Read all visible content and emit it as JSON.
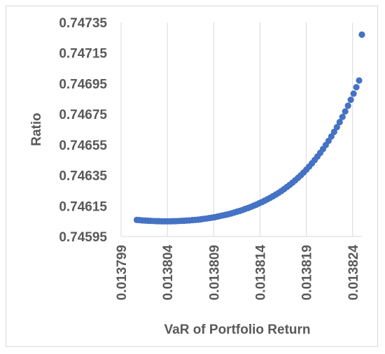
{
  "chart_data": {
    "type": "scatter",
    "title": "",
    "xlabel": "VaR of Portfolio Return",
    "ylabel": "Ratio",
    "xlim": [
      0.013799,
      0.013825
    ],
    "ylim": [
      0.74595,
      0.74735
    ],
    "x_ticks": [
      "0.013799",
      "0.013804",
      "0.013809",
      "0.013814",
      "0.013819",
      "0.013824"
    ],
    "y_ticks": [
      "0.74735",
      "0.74715",
      "0.74695",
      "0.74675",
      "0.74655",
      "0.74635",
      "0.74615",
      "0.74595"
    ],
    "grid": "vertical",
    "legend": "none",
    "marker_color": "#4472C4",
    "series": [
      {
        "x": [
          0.0138007,
          0.013801,
          0.0138013,
          0.0138016,
          0.0138019,
          0.0138022,
          0.0138025,
          0.0138028,
          0.0138031,
          0.0138034,
          0.0138037,
          0.013804,
          0.0138043,
          0.0138046,
          0.0138049,
          0.0138052,
          0.0138055,
          0.0138058,
          0.0138061,
          0.0138064,
          0.0138067,
          0.013807,
          0.0138073,
          0.0138076,
          0.0138079,
          0.0138082,
          0.0138085,
          0.0138088,
          0.0138091,
          0.0138094,
          0.0138097,
          0.01381,
          0.0138103,
          0.0138106,
          0.0138109,
          0.0138112,
          0.0138115,
          0.0138118,
          0.0138121,
          0.0138124,
          0.0138127,
          0.013813,
          0.0138133,
          0.0138136,
          0.0138139,
          0.0138142,
          0.0138145,
          0.0138148,
          0.0138151,
          0.0138154,
          0.0138157,
          0.013816,
          0.0138163,
          0.0138166,
          0.0138169,
          0.0138172,
          0.0138175,
          0.0138178,
          0.0138181,
          0.0138184,
          0.0138187,
          0.013819,
          0.0138193,
          0.0138196,
          0.0138199,
          0.0138202,
          0.0138205,
          0.0138208,
          0.0138211,
          0.0138214,
          0.0138217,
          0.013822,
          0.0138223,
          0.0138226,
          0.0138229,
          0.0138232,
          0.0138235,
          0.0138238,
          0.0138241,
          0.0138244,
          0.0138247,
          0.013825
        ],
        "y": [
          0.746058,
          0.746057,
          0.746055,
          0.746054,
          0.746053,
          0.746052,
          0.746051,
          0.74605,
          0.74605,
          0.746049,
          0.746049,
          0.746049,
          0.746049,
          0.74605,
          0.74605,
          0.746051,
          0.746052,
          0.746053,
          0.746054,
          0.746055,
          0.746057,
          0.746058,
          0.74606,
          0.746062,
          0.746065,
          0.746067,
          0.74607,
          0.746073,
          0.746076,
          0.74608,
          0.746084,
          0.746088,
          0.746092,
          0.746096,
          0.746101,
          0.746106,
          0.746112,
          0.746117,
          0.746123,
          0.74613,
          0.746136,
          0.746143,
          0.746151,
          0.746158,
          0.746167,
          0.746175,
          0.746184,
          0.746193,
          0.746203,
          0.746213,
          0.746224,
          0.746235,
          0.746247,
          0.74626,
          0.746273,
          0.746287,
          0.746302,
          0.746317,
          0.746333,
          0.74635,
          0.746368,
          0.746387,
          0.746407,
          0.746428,
          0.74645,
          0.746473,
          0.746497,
          0.746522,
          0.746548,
          0.746575,
          0.746604,
          0.746634,
          0.746665,
          0.746698,
          0.746732,
          0.746768,
          0.746805,
          0.746844,
          0.746884,
          0.746926,
          0.74697,
          0.74727
        ]
      }
    ]
  }
}
